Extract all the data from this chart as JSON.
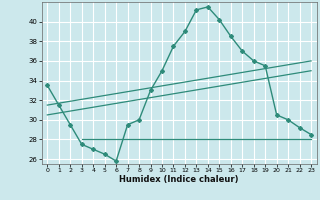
{
  "title": "",
  "xlabel": "Humidex (Indice chaleur)",
  "x_ticks": [
    0,
    1,
    2,
    3,
    4,
    5,
    6,
    7,
    8,
    9,
    10,
    11,
    12,
    13,
    14,
    15,
    16,
    17,
    18,
    19,
    20,
    21,
    22,
    23
  ],
  "ylim": [
    25.5,
    42.0
  ],
  "yticks": [
    26,
    28,
    30,
    32,
    34,
    36,
    38,
    40
  ],
  "xlim": [
    -0.5,
    23.5
  ],
  "bg_color": "#cce8ec",
  "line_color": "#2e8b7a",
  "grid_color": "#ffffff",
  "main_curve_x": [
    0,
    1,
    2,
    3,
    4,
    5,
    6,
    7,
    8,
    9,
    10,
    11,
    12,
    13,
    14,
    15,
    16,
    17,
    18,
    19,
    20,
    21,
    22,
    23
  ],
  "main_curve_y": [
    33.5,
    31.5,
    29.5,
    27.5,
    27.0,
    26.5,
    25.8,
    29.5,
    30.0,
    33.0,
    35.0,
    37.5,
    39.0,
    41.2,
    41.5,
    40.2,
    38.5,
    37.0,
    36.0,
    35.5,
    30.5,
    30.0,
    29.2,
    28.5
  ],
  "trend1_x": [
    0,
    23
  ],
  "trend1_y": [
    31.5,
    36.0
  ],
  "trend2_x": [
    0,
    23
  ],
  "trend2_y": [
    30.5,
    35.0
  ],
  "flat_line_x": [
    3,
    23
  ],
  "flat_line_y": [
    28.0,
    28.0
  ]
}
